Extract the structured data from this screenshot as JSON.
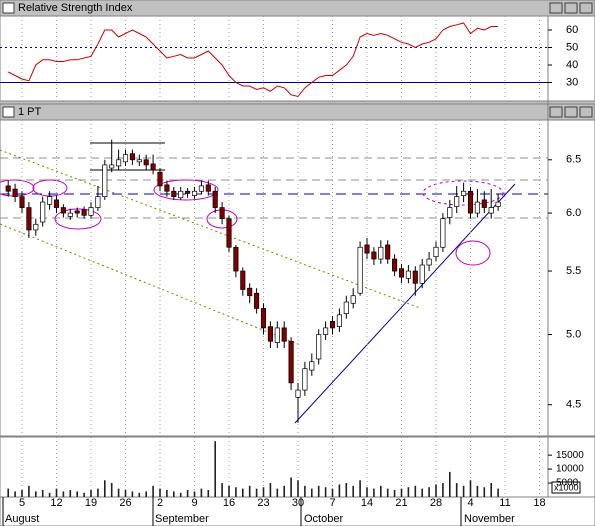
{
  "chart_data": [
    {
      "type": "line",
      "title": "Relative Strength Index",
      "color": "#d00000",
      "values": [
        36,
        34,
        32,
        31,
        40,
        43,
        43,
        42,
        42,
        43,
        43,
        44,
        45,
        52,
        60,
        60,
        56,
        58,
        60,
        58,
        56,
        52,
        48,
        44,
        45,
        46,
        44,
        44,
        46,
        48,
        44,
        40,
        34,
        30,
        28,
        28,
        26,
        27,
        25,
        28,
        27,
        23,
        22,
        27,
        30,
        33,
        34,
        34,
        37,
        40,
        45,
        56,
        58,
        57,
        58,
        57,
        55,
        53,
        52,
        50,
        52,
        53,
        55,
        60,
        62,
        63,
        64,
        58,
        61,
        60,
        62,
        62,
        null,
        null,
        null,
        null,
        null,
        null,
        null
      ],
      "ylim": [
        20,
        68
      ],
      "yticks": [
        30,
        40,
        50,
        60
      ],
      "hlines": [
        {
          "value": 50,
          "style": "dotted",
          "color": "#0000a0"
        },
        {
          "value": 30,
          "style": "solid",
          "color": "#000080"
        }
      ]
    },
    {
      "type": "candlestick",
      "title": "1 PT",
      "log_scale": true,
      "up_color": "#ffffff",
      "down_color": "#800000",
      "open": [
        6.25,
        6.22,
        6.15,
        6.05,
        5.85,
        5.92,
        6.08,
        6.12,
        6.05,
        5.97,
        6.02,
        6.03,
        5.98,
        6.05,
        6.15,
        6.42,
        6.44,
        6.48,
        6.56,
        6.48,
        6.5,
        6.46,
        6.38,
        6.26,
        6.2,
        6.14,
        6.2,
        6.16,
        6.2,
        6.26,
        6.2,
        6.05,
        5.95,
        5.7,
        5.5,
        5.36,
        5.32,
        5.2,
        5.06,
        4.94,
        5.05,
        4.95,
        4.55,
        4.6,
        4.74,
        4.82,
        5.0,
        5.1,
        5.06,
        5.16,
        5.24,
        5.32,
        5.72,
        5.66,
        5.6,
        5.72,
        5.6,
        5.52,
        5.44,
        5.5,
        5.4,
        5.55,
        5.62,
        5.7,
        5.96,
        6.06,
        6.16,
        6.2,
        6.0,
        6.12,
        6.0,
        6.06,
        null,
        null,
        null,
        null,
        null,
        null,
        null
      ],
      "high": [
        6.3,
        6.27,
        6.2,
        6.1,
        5.95,
        6.15,
        6.2,
        6.16,
        6.08,
        6.04,
        6.05,
        6.06,
        6.1,
        6.25,
        6.5,
        6.7,
        6.6,
        6.6,
        6.6,
        6.55,
        6.55,
        6.55,
        6.42,
        6.3,
        6.24,
        6.24,
        6.23,
        6.24,
        6.3,
        6.3,
        6.24,
        6.1,
        5.98,
        5.72,
        5.53,
        5.4,
        5.36,
        5.24,
        5.1,
        5.1,
        5.1,
        4.98,
        4.65,
        4.8,
        4.86,
        5.04,
        5.1,
        5.14,
        5.2,
        5.3,
        5.36,
        5.75,
        5.78,
        5.7,
        5.76,
        5.76,
        5.64,
        5.56,
        5.55,
        5.54,
        5.6,
        5.66,
        5.75,
        6.0,
        6.12,
        6.25,
        6.28,
        6.24,
        6.22,
        6.2,
        6.22,
        6.18,
        null,
        null,
        null,
        null,
        null,
        null,
        null
      ],
      "low": [
        6.15,
        6.1,
        6.0,
        5.78,
        5.8,
        5.88,
        6.03,
        6.0,
        5.96,
        5.94,
        5.96,
        5.95,
        5.95,
        6.02,
        6.12,
        6.38,
        6.4,
        6.44,
        6.45,
        6.44,
        6.4,
        6.36,
        6.2,
        6.15,
        6.12,
        6.12,
        6.14,
        6.13,
        6.17,
        6.16,
        6.0,
        5.9,
        5.66,
        5.45,
        5.3,
        5.24,
        5.16,
        5.0,
        4.9,
        4.9,
        4.9,
        4.6,
        4.38,
        4.56,
        4.7,
        4.78,
        4.96,
        5.0,
        5.02,
        5.12,
        5.2,
        5.3,
        5.6,
        5.55,
        5.56,
        5.56,
        5.46,
        5.4,
        5.4,
        5.3,
        5.36,
        5.5,
        5.58,
        5.66,
        5.9,
        6.0,
        6.1,
        5.95,
        5.96,
        6.0,
        5.95,
        6.02,
        null,
        null,
        null,
        null,
        null,
        null,
        null
      ],
      "close": [
        6.2,
        6.15,
        6.05,
        5.85,
        5.9,
        6.1,
        6.15,
        6.05,
        6.0,
        6.0,
        6.0,
        5.98,
        6.05,
        6.15,
        6.45,
        6.45,
        6.5,
        6.55,
        6.5,
        6.5,
        6.45,
        6.4,
        6.25,
        6.2,
        6.15,
        6.2,
        6.18,
        6.2,
        6.25,
        6.2,
        6.05,
        5.95,
        5.7,
        5.5,
        5.35,
        5.3,
        5.2,
        5.05,
        4.95,
        5.05,
        4.95,
        4.65,
        4.6,
        4.75,
        4.8,
        5.0,
        5.05,
        5.05,
        5.15,
        5.25,
        5.3,
        5.7,
        5.65,
        5.6,
        5.7,
        5.6,
        5.5,
        5.45,
        5.5,
        5.4,
        5.55,
        5.6,
        5.7,
        5.95,
        6.05,
        6.15,
        6.2,
        6.0,
        6.1,
        6.05,
        6.05,
        6.1,
        null,
        null,
        null,
        null,
        null,
        null,
        null
      ],
      "ylim": [
        4.3,
        6.9
      ],
      "yticks": [
        4.5,
        {
          "value": 5,
          "label": "5.0"
        },
        5.5,
        {
          "value": 6,
          "label": "6.0"
        },
        6.5
      ]
    },
    {
      "type": "bar",
      "color": "#202020",
      "unit_label": "x1000",
      "values": [
        3000,
        2000,
        2500,
        4000,
        2000,
        2500,
        1500,
        3000,
        2000,
        2500,
        2000,
        1500,
        2500,
        3000,
        6000,
        5000,
        3000,
        2500,
        2000,
        1500,
        2000,
        4000,
        3000,
        2500,
        2000,
        1500,
        2500,
        2000,
        3000,
        2500,
        20000,
        5000,
        4000,
        3500,
        3000,
        4000,
        3000,
        3500,
        5000,
        3000,
        4000,
        7000,
        6000,
        4000,
        3000,
        4000,
        3500,
        3000,
        4500,
        5000,
        4000,
        6000,
        3500,
        3000,
        4000,
        3000,
        2500,
        3000,
        3500,
        4000,
        3000,
        3500,
        4500,
        5000,
        9000,
        5000,
        4000,
        6000,
        4000,
        3500,
        5000,
        3000,
        null,
        null,
        null,
        null,
        null,
        null,
        null
      ],
      "ylim": [
        0,
        21500
      ],
      "yticks": [
        5000,
        10000,
        15000
      ],
      "categories": [
        null,
        null,
        "5",
        null,
        null,
        null,
        null,
        "12",
        null,
        null,
        null,
        null,
        "19",
        null,
        null,
        null,
        null,
        "26",
        null,
        null,
        null,
        null,
        "2",
        null,
        null,
        null,
        null,
        "9",
        null,
        null,
        null,
        null,
        "16",
        null,
        null,
        null,
        null,
        "23",
        null,
        null,
        null,
        null,
        "30",
        null,
        null,
        null,
        null,
        "7",
        null,
        null,
        null,
        null,
        "14",
        null,
        null,
        null,
        null,
        "21",
        null,
        null,
        null,
        null,
        "28",
        null,
        null,
        null,
        null,
        "4",
        null,
        null,
        null,
        null,
        "11",
        null,
        null,
        null,
        null,
        "18",
        null
      ],
      "months": [
        "August",
        "September",
        "October",
        "November"
      ]
    }
  ]
}
